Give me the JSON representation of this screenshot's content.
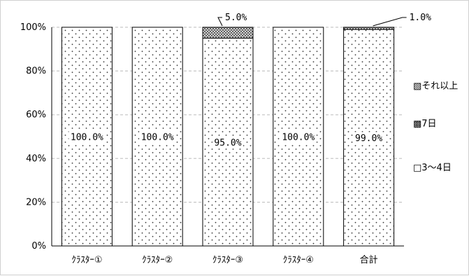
{
  "chart_data": {
    "type": "bar",
    "stacked": true,
    "percent": true,
    "categories": [
      "ｸﾗｽﾀｰ①",
      "ｸﾗｽﾀｰ②",
      "ｸﾗｽﾀｰ③",
      "ｸﾗｽﾀｰ④",
      "合計"
    ],
    "series": [
      {
        "name": "□3～4日",
        "values": [
          100.0,
          100.0,
          95.0,
          100.0,
          99.0
        ],
        "labels": [
          "100.0%",
          "100.0%",
          "95.0%",
          "100.0%",
          "99.0%"
        ],
        "fill": "dotted"
      },
      {
        "name": "▩7日",
        "values": [
          0,
          0,
          5.0,
          0,
          1.0
        ],
        "fill": "crosshatch"
      },
      {
        "name": "▧それ以上",
        "values": [
          0,
          0,
          0,
          0,
          0
        ],
        "fill": "diagonal"
      }
    ],
    "annotations": [
      {
        "category": "ｸﾗｽﾀｰ③",
        "text": "5.0%"
      },
      {
        "category": "合計",
        "text": "1.0%"
      }
    ],
    "yticks": [
      "0%",
      "20%",
      "40%",
      "60%",
      "80%",
      "100%"
    ],
    "ylim": [
      0,
      100
    ],
    "grid": "horizontal-dashed",
    "legend_position": "right",
    "colors": {
      "bar_fill": "#ffffff",
      "border": "#000000",
      "grid": "#bbbbbb",
      "hatch": "#666666"
    }
  }
}
